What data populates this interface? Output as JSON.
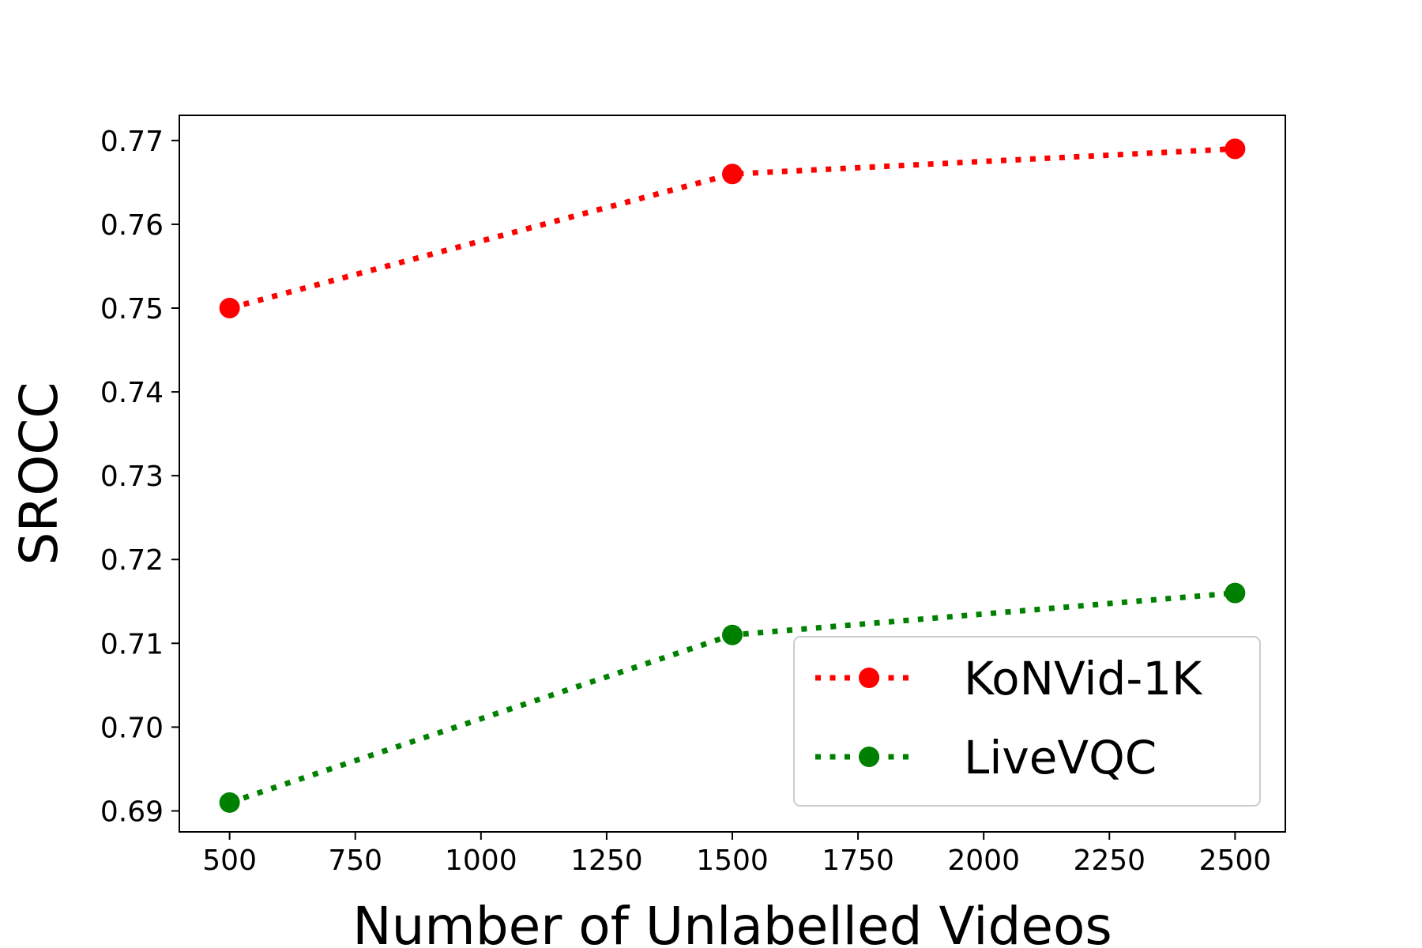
{
  "chart_data": {
    "type": "line",
    "title": "",
    "xlabel": "Number of Unlabelled Videos",
    "ylabel": "SROCC",
    "xlim": [
      400,
      2600
    ],
    "ylim": [
      0.6875,
      0.773
    ],
    "x_ticks": [
      500,
      750,
      1000,
      1250,
      1500,
      1750,
      2000,
      2250,
      2500
    ],
    "x_tick_labels": [
      "500",
      "750",
      "1000",
      "1250",
      "1500",
      "1750",
      "2000",
      "2250",
      "2500"
    ],
    "y_ticks": [
      0.69,
      0.7,
      0.71,
      0.72,
      0.73,
      0.74,
      0.75,
      0.76,
      0.77
    ],
    "y_tick_labels": [
      "0.69",
      "0.70",
      "0.71",
      "0.72",
      "0.73",
      "0.74",
      "0.75",
      "0.76",
      "0.77"
    ],
    "grid": false,
    "legend_position": "bottom-right",
    "line_style": "dotted",
    "x": [
      500,
      1500,
      2500
    ],
    "series": [
      {
        "name": "KoNVid-1K",
        "color": "#ff0000",
        "values": [
          0.75,
          0.766,
          0.769
        ]
      },
      {
        "name": "LiveVQC",
        "color": "#008000",
        "values": [
          0.691,
          0.711,
          0.716
        ]
      }
    ]
  }
}
